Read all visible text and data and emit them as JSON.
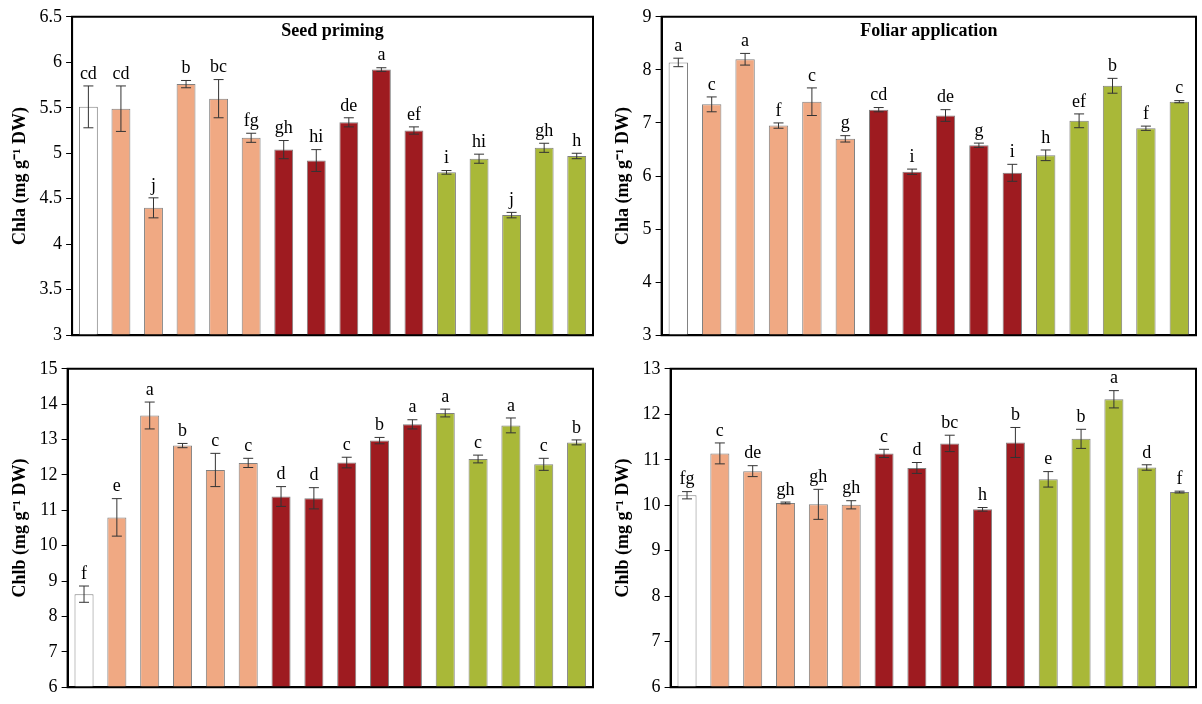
{
  "chart_data": [
    {
      "type": "bar",
      "title": "Seed priming",
      "ylabel": "Chla (mg g⁻¹ DW)",
      "categories": [
        null,
        null,
        null,
        null,
        null,
        null,
        null,
        null,
        null,
        null,
        null,
        null,
        null,
        null,
        null,
        null
      ],
      "values": [
        5.51,
        5.49,
        4.4,
        5.76,
        5.6,
        5.17,
        5.04,
        4.92,
        5.34,
        5.92,
        5.25,
        4.79,
        4.94,
        4.32,
        5.06,
        4.97
      ],
      "errors": [
        0.23,
        0.25,
        0.11,
        0.04,
        0.21,
        0.05,
        0.1,
        0.12,
        0.05,
        0.02,
        0.04,
        0.02,
        0.05,
        0.03,
        0.05,
        0.03
      ],
      "value_labels": [
        "cd",
        "cd",
        "j",
        "b",
        "bc",
        "fg",
        "gh",
        "hi",
        "de",
        "a",
        "ef",
        "i",
        "hi",
        "j",
        "gh",
        "h"
      ],
      "colors": [
        "#ffffff",
        "#f0a983",
        "#f0a983",
        "#f0a983",
        "#f0a983",
        "#f0a983",
        "#9e1b20",
        "#9e1b20",
        "#9e1b20",
        "#9e1b20",
        "#9e1b20",
        "#a9b838",
        "#a9b838",
        "#a9b838",
        "#a9b838",
        "#a9b838"
      ],
      "ylim": [
        3,
        6.5
      ],
      "yticks": [
        3,
        3.5,
        4,
        4.5,
        5,
        5.5,
        6,
        6.5
      ]
    },
    {
      "type": "bar",
      "title": "Foliar application",
      "ylabel": "Chla (mg g⁻¹ DW)",
      "categories": [
        null,
        null,
        null,
        null,
        null,
        null,
        null,
        null,
        null,
        null,
        null,
        null,
        null,
        null,
        null,
        null
      ],
      "values": [
        8.14,
        7.35,
        8.2,
        6.95,
        7.4,
        6.7,
        7.25,
        6.08,
        7.14,
        6.58,
        6.06,
        6.39,
        7.04,
        7.7,
        6.9,
        7.4
      ],
      "errors": [
        0.08,
        0.14,
        0.11,
        0.05,
        0.26,
        0.06,
        0.04,
        0.05,
        0.11,
        0.04,
        0.16,
        0.1,
        0.13,
        0.14,
        0.04,
        0.02
      ],
      "value_labels": [
        "a",
        "c",
        "a",
        "f",
        "c",
        "g",
        "cd",
        "i",
        "de",
        "g",
        "i",
        "h",
        "ef",
        "b",
        "f",
        "c"
      ],
      "colors": [
        "#ffffff",
        "#f0a983",
        "#f0a983",
        "#f0a983",
        "#f0a983",
        "#f0a983",
        "#9e1b20",
        "#9e1b20",
        "#9e1b20",
        "#9e1b20",
        "#9e1b20",
        "#a9b838",
        "#a9b838",
        "#a9b838",
        "#a9b838",
        "#a9b838"
      ],
      "ylim": [
        3,
        9
      ],
      "yticks": [
        3,
        4,
        5,
        6,
        7,
        8,
        9
      ]
    },
    {
      "type": "bar",
      "ylabel": "Chlb (mg g⁻¹ DW)",
      "categories": [
        null,
        null,
        null,
        null,
        null,
        null,
        null,
        null,
        null,
        null,
        null,
        null,
        null,
        null,
        null,
        null
      ],
      "values": [
        8.63,
        10.8,
        13.68,
        12.83,
        12.14,
        12.34,
        11.39,
        11.34,
        12.35,
        12.97,
        13.43,
        13.75,
        12.45,
        13.4,
        12.3,
        12.92
      ],
      "errors": [
        0.23,
        0.53,
        0.38,
        0.06,
        0.47,
        0.13,
        0.28,
        0.3,
        0.15,
        0.09,
        0.13,
        0.11,
        0.11,
        0.21,
        0.17,
        0.07
      ],
      "value_labels": [
        "f",
        "e",
        "a",
        "b",
        "c",
        "c",
        "d",
        "d",
        "c",
        "b",
        "a",
        "a",
        "c",
        "a",
        "c",
        "b"
      ],
      "colors": [
        "#ffffff",
        "#f0a983",
        "#f0a983",
        "#f0a983",
        "#f0a983",
        "#f0a983",
        "#9e1b20",
        "#9e1b20",
        "#9e1b20",
        "#9e1b20",
        "#9e1b20",
        "#a9b838",
        "#a9b838",
        "#a9b838",
        "#a9b838",
        "#a9b838"
      ],
      "ylim": [
        6,
        15
      ],
      "yticks": [
        6,
        7,
        8,
        9,
        10,
        11,
        12,
        13,
        14,
        15
      ]
    },
    {
      "type": "bar",
      "ylabel": "Chlb (mg g⁻¹ DW)",
      "categories": [
        null,
        null,
        null,
        null,
        null,
        null,
        null,
        null,
        null,
        null,
        null,
        null,
        null,
        null,
        null,
        null
      ],
      "values": [
        10.22,
        11.14,
        10.75,
        10.05,
        10.02,
        10.01,
        11.14,
        10.82,
        11.36,
        9.91,
        11.38,
        10.57,
        11.46,
        12.33,
        10.83,
        10.29
      ],
      "errors": [
        0.08,
        0.23,
        0.12,
        0.02,
        0.33,
        0.09,
        0.09,
        0.12,
        0.18,
        0.04,
        0.33,
        0.17,
        0.21,
        0.19,
        0.06,
        0.02
      ],
      "value_labels": [
        "fg",
        "c",
        "de",
        "gh",
        "gh",
        "gh",
        "c",
        "d",
        "bc",
        "h",
        "b",
        "e",
        "b",
        "a",
        "d",
        "f"
      ],
      "colors": [
        "#ffffff",
        "#f0a983",
        "#f0a983",
        "#f0a983",
        "#f0a983",
        "#f0a983",
        "#9e1b20",
        "#9e1b20",
        "#9e1b20",
        "#9e1b20",
        "#9e1b20",
        "#a9b838",
        "#a9b838",
        "#a9b838",
        "#a9b838",
        "#a9b838"
      ],
      "ylim": [
        6,
        13
      ],
      "yticks": [
        6,
        7,
        8,
        9,
        10,
        11,
        12,
        13
      ]
    }
  ]
}
